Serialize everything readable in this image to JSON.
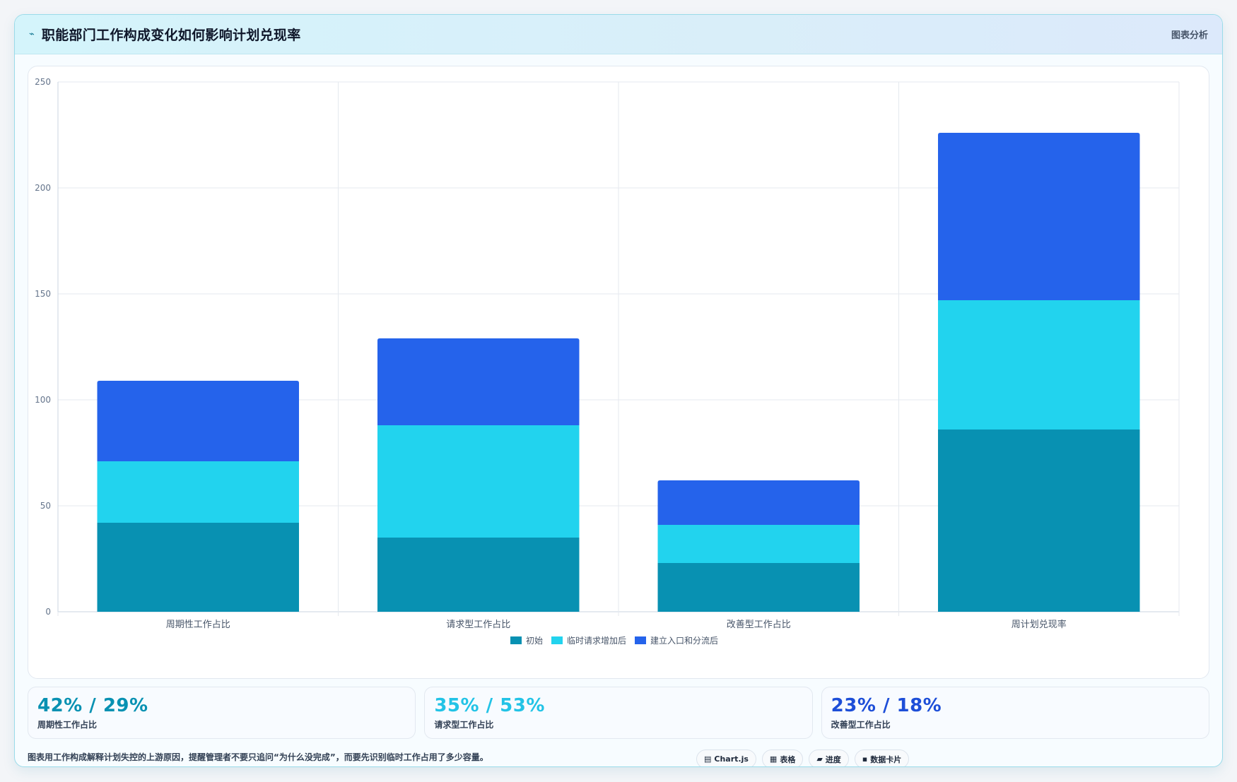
{
  "header": {
    "icon": "chart-line-icon",
    "icon_glyph": "⌁",
    "title": "职能部门工作构成变化如何影响计划兑现率",
    "right_label": "图表分析"
  },
  "chart_data": {
    "type": "bar",
    "stacked": true,
    "categories": [
      "周期性工作占比",
      "请求型工作占比",
      "改善型工作占比",
      "周计划兑现率"
    ],
    "series": [
      {
        "name": "初始",
        "color": "#0891b2",
        "values": [
          42,
          35,
          23,
          86
        ]
      },
      {
        "name": "临时请求增加后",
        "color": "#22d3ee",
        "values": [
          29,
          53,
          18,
          61
        ]
      },
      {
        "name": "建立入口和分流后",
        "color": "#2563eb",
        "values": [
          38,
          41,
          21,
          79
        ]
      }
    ],
    "ylim": [
      0,
      250
    ],
    "yticks": [
      0,
      50,
      100,
      150,
      200,
      250
    ],
    "grid": true,
    "legend": "bottom-center"
  },
  "stats": [
    {
      "value": "42% / 29%",
      "label": "周期性工作占比",
      "color": "#0891b2"
    },
    {
      "value": "35% / 53%",
      "label": "请求型工作占比",
      "color": "#22c3e6"
    },
    {
      "value": "23% / 18%",
      "label": "改善型工作占比",
      "color": "#1d4ed8"
    }
  ],
  "footer": {
    "note": "图表用工作构成解释计划失控的上游原因，提醒管理者不要只追问“为什么没完成”，而要先识别临时工作占用了多少容量。",
    "chips": [
      {
        "icon": "chart-icon",
        "glyph": "▤",
        "label": "Chart.js"
      },
      {
        "icon": "table-icon",
        "glyph": "▦",
        "label": "表格"
      },
      {
        "icon": "progress-icon",
        "glyph": "▰",
        "label": "进度"
      },
      {
        "icon": "card-icon",
        "glyph": "▪",
        "label": "数据卡片"
      }
    ]
  }
}
